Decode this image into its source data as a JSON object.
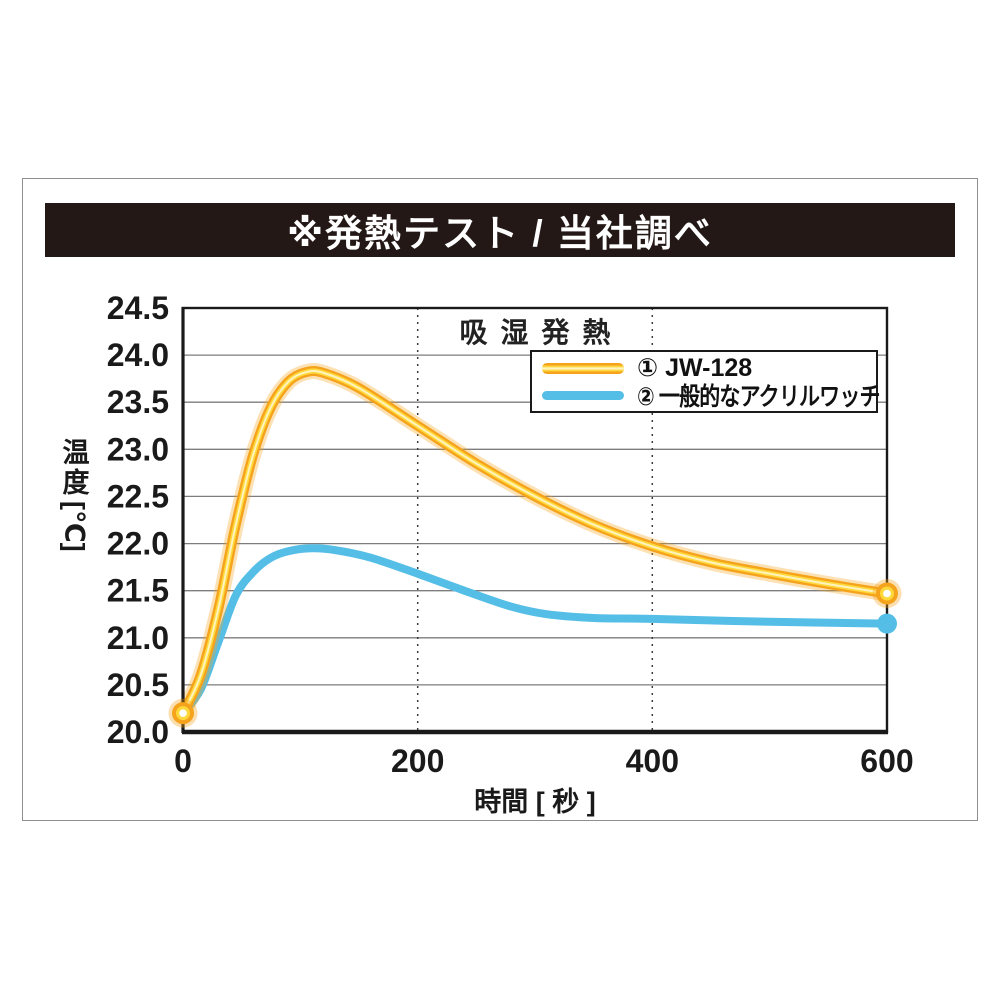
{
  "header": {
    "title": "※発熱テスト / 当社調べ",
    "bg_color": "#231815",
    "text_color": "#FFFFFF"
  },
  "frame_color": "#8F8F8F",
  "chart_data": {
    "type": "line",
    "title": "吸湿発熱",
    "xlabel": "時間 [ 秒 ]",
    "ylabel": "温度[℃]",
    "ylabel_parts": {
      "kanji": "温度",
      "unit": "[℃]"
    },
    "xlim": [
      0,
      600
    ],
    "ylim": [
      20.0,
      24.5
    ],
    "x_ticks": [
      "0",
      "200",
      "400",
      "600"
    ],
    "y_ticks": [
      "24.5",
      "24.0",
      "23.5",
      "23.0",
      "22.5",
      "22.0",
      "21.5",
      "21.0",
      "20.5",
      "20.0"
    ],
    "grid": {
      "horizontal": "solid lines every 0.5°C",
      "vertical": "dotted lines at 200 and 400 s"
    },
    "legend": {
      "position": "top-right",
      "entries": [
        "① JW-128",
        "② 一般的なアクリルワッチ"
      ]
    },
    "series": [
      {
        "name": "① JW-128",
        "color": "#F5A31C",
        "core_color": "#FFD83B",
        "highlight_color": "#FFF3BE",
        "marker": "ring",
        "marker_at": "first-and-last",
        "points": [
          [
            0,
            20.2
          ],
          [
            15,
            20.6
          ],
          [
            30,
            21.3
          ],
          [
            45,
            22.2
          ],
          [
            60,
            22.95
          ],
          [
            75,
            23.45
          ],
          [
            90,
            23.72
          ],
          [
            105,
            23.82
          ],
          [
            120,
            23.81
          ],
          [
            150,
            23.65
          ],
          [
            200,
            23.25
          ],
          [
            250,
            22.85
          ],
          [
            300,
            22.5
          ],
          [
            350,
            22.2
          ],
          [
            400,
            21.97
          ],
          [
            450,
            21.8
          ],
          [
            500,
            21.68
          ],
          [
            550,
            21.57
          ],
          [
            600,
            21.47
          ]
        ]
      },
      {
        "name": "② 一般的なアクリルワッチ",
        "color": "#54BEE7",
        "marker": "dot",
        "marker_at": "last",
        "points": [
          [
            0,
            20.2
          ],
          [
            15,
            20.45
          ],
          [
            30,
            20.95
          ],
          [
            45,
            21.45
          ],
          [
            60,
            21.7
          ],
          [
            75,
            21.85
          ],
          [
            90,
            21.92
          ],
          [
            110,
            21.95
          ],
          [
            130,
            21.93
          ],
          [
            160,
            21.85
          ],
          [
            200,
            21.68
          ],
          [
            240,
            21.5
          ],
          [
            280,
            21.33
          ],
          [
            310,
            21.25
          ],
          [
            350,
            21.21
          ],
          [
            400,
            21.2
          ],
          [
            500,
            21.17
          ],
          [
            600,
            21.15
          ]
        ]
      }
    ]
  }
}
